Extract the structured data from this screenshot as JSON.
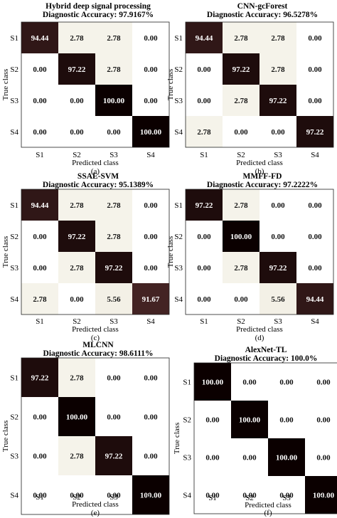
{
  "chart_data": [
    {
      "type": "heatmap",
      "panel_label": "(a)",
      "title": "Hybrid deep signal processing",
      "subtitle": "Diagnostic Accuracy: 97.9167%",
      "xlabel": "Predicted class",
      "ylabel": "True class",
      "x_categories": [
        "S1",
        "S2",
        "S3",
        "S4"
      ],
      "y_categories": [
        "S1",
        "S2",
        "S3",
        "S4"
      ],
      "values": [
        [
          94.44,
          2.78,
          2.78,
          0.0
        ],
        [
          0.0,
          97.22,
          2.78,
          0.0
        ],
        [
          0.0,
          0.0,
          100.0,
          0.0
        ],
        [
          0.0,
          0.0,
          0.0,
          100.0
        ]
      ],
      "value_labels": [
        [
          "94.44",
          "2.78",
          "2.78",
          "0.00"
        ],
        [
          "0.00",
          "97.22",
          "2.78",
          "0.00"
        ],
        [
          "0.00",
          "0.00",
          "100.00",
          "0.00"
        ],
        [
          "0.00",
          "0.00",
          "0.00",
          "100.00"
        ]
      ]
    },
    {
      "type": "heatmap",
      "panel_label": "(b)",
      "title": "CNN-gcForest",
      "subtitle": "Diagnostic Accuracy: 96.5278%",
      "xlabel": "Predicted class",
      "ylabel": "True class",
      "x_categories": [
        "S1",
        "S2",
        "S3",
        "S4"
      ],
      "y_categories": [
        "S1",
        "S2",
        "S3",
        "S4"
      ],
      "values": [
        [
          94.44,
          2.78,
          2.78,
          0.0
        ],
        [
          0.0,
          97.22,
          2.78,
          0.0
        ],
        [
          0.0,
          2.78,
          97.22,
          0.0
        ],
        [
          2.78,
          0.0,
          0.0,
          97.22
        ]
      ],
      "value_labels": [
        [
          "94.44",
          "2.78",
          "2.78",
          "0.00"
        ],
        [
          "0.00",
          "97.22",
          "2.78",
          "0.00"
        ],
        [
          "0.00",
          "2.78",
          "97.22",
          "0.00"
        ],
        [
          "2.78",
          "0.00",
          "0.00",
          "97.22"
        ]
      ]
    },
    {
      "type": "heatmap",
      "panel_label": "(c)",
      "title": "SSAE-SVM",
      "subtitle": "Diagnostic Accuracy: 95.1389%",
      "xlabel": "Predicted class",
      "ylabel": "True class",
      "x_categories": [
        "S1",
        "S2",
        "S3",
        "S4"
      ],
      "y_categories": [
        "S1",
        "S2",
        "S3",
        "S4"
      ],
      "values": [
        [
          94.44,
          2.78,
          2.78,
          0.0
        ],
        [
          0.0,
          97.22,
          2.78,
          0.0
        ],
        [
          0.0,
          2.78,
          97.22,
          0.0
        ],
        [
          2.78,
          0.0,
          5.56,
          91.67
        ]
      ],
      "value_labels": [
        [
          "94.44",
          "2.78",
          "2.78",
          "0.00"
        ],
        [
          "0.00",
          "97.22",
          "2.78",
          "0.00"
        ],
        [
          "0.00",
          "2.78",
          "97.22",
          "0.00"
        ],
        [
          "2.78",
          "0.00",
          "5.56",
          "91.67"
        ]
      ]
    },
    {
      "type": "heatmap",
      "panel_label": "(d)",
      "title": "MMFF-FD",
      "subtitle": "Diagnostic Accuracy: 97.2222%",
      "xlabel": "Predicted class",
      "ylabel": "True class",
      "x_categories": [
        "S1",
        "S2",
        "S3",
        "S4"
      ],
      "y_categories": [
        "S1",
        "S2",
        "S3",
        "S4"
      ],
      "values": [
        [
          97.22,
          2.78,
          0.0,
          0.0
        ],
        [
          0.0,
          100.0,
          0.0,
          0.0
        ],
        [
          0.0,
          2.78,
          97.22,
          0.0
        ],
        [
          0.0,
          0.0,
          5.56,
          94.44
        ]
      ],
      "value_labels": [
        [
          "97.22",
          "2.78",
          "0.00",
          "0.00"
        ],
        [
          "0.00",
          "100.00",
          "0.00",
          "0.00"
        ],
        [
          "0.00",
          "2.78",
          "97.22",
          "0.00"
        ],
        [
          "0.00",
          "0.00",
          "5.56",
          "94.44"
        ]
      ]
    },
    {
      "type": "heatmap",
      "panel_label": "(e)",
      "title": "MLCNN",
      "subtitle": "Diagnostic Accuracy: 98.6111%",
      "xlabel": "Predicted class",
      "ylabel": "True class",
      "x_categories": [
        "S1",
        "S2",
        "S3",
        "S4"
      ],
      "y_categories": [
        "S1",
        "S2",
        "S3",
        "S4"
      ],
      "values": [
        [
          97.22,
          2.78,
          0.0,
          0.0
        ],
        [
          0.0,
          100.0,
          0.0,
          0.0
        ],
        [
          0.0,
          2.78,
          97.22,
          0.0
        ],
        [
          0.0,
          0.0,
          0.0,
          100.0
        ]
      ],
      "value_labels": [
        [
          "97.22",
          "2.78",
          "0.00",
          "0.00"
        ],
        [
          "0.00",
          "100.00",
          "0.00",
          "0.00"
        ],
        [
          "0.00",
          "2.78",
          "97.22",
          "0.00"
        ],
        [
          "0.00",
          "0.00",
          "0.00",
          "100.00"
        ]
      ]
    },
    {
      "type": "heatmap",
      "panel_label": "(f)",
      "title": "AlexNet-TL",
      "subtitle": "Diagnostic Accuracy: 100.0%",
      "xlabel": "Predicted class",
      "ylabel": "True class",
      "x_categories": [
        "S1",
        "S2",
        "S3",
        "S4"
      ],
      "y_categories": [
        "S1",
        "S2",
        "S3",
        "S4"
      ],
      "values": [
        [
          100.0,
          0.0,
          0.0,
          0.0
        ],
        [
          0.0,
          100.0,
          0.0,
          0.0
        ],
        [
          0.0,
          0.0,
          100.0,
          0.0
        ],
        [
          0.0,
          0.0,
          0.0,
          100.0
        ]
      ],
      "value_labels": [
        [
          "100.00",
          "0.00",
          "0.00",
          "0.00"
        ],
        [
          "0.00",
          "100.00",
          "0.00",
          "0.00"
        ],
        [
          "0.00",
          "0.00",
          "100.00",
          "0.00"
        ],
        [
          "0.00",
          "0.00",
          "0.00",
          "100.00"
        ]
      ]
    }
  ],
  "colors": {
    "low": "#ffffff",
    "mid": "#f1ede1",
    "high": "#4e2a2a",
    "max": "#0b0000",
    "text_dark": "#111111",
    "text_light": "#ffffff"
  }
}
